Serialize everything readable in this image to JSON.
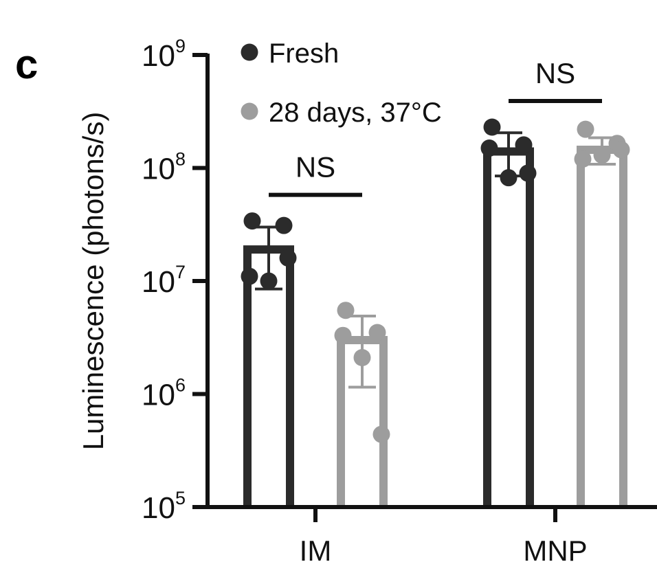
{
  "panel_label": "c",
  "chart_data": {
    "type": "bar",
    "scale": "log",
    "ylabel": "Luminescence (photons/s)",
    "xlabel": "",
    "ylim": [
      100000,
      1000000000
    ],
    "yticks": [
      {
        "value": 100000,
        "base": "10",
        "exp": "5"
      },
      {
        "value": 1000000,
        "base": "10",
        "exp": "6"
      },
      {
        "value": 10000000,
        "base": "10",
        "exp": "7"
      },
      {
        "value": 100000000,
        "base": "10",
        "exp": "8"
      },
      {
        "value": 1000000000,
        "base": "10",
        "exp": "9"
      }
    ],
    "categories": [
      "IM",
      "MNP"
    ],
    "legend": {
      "placement": "top-left"
    },
    "series": [
      {
        "name": "Fresh",
        "color": "#2b2b2b",
        "values": [
          19000000,
          140000000
        ],
        "error": [
          [
            8500000,
            30000000
          ],
          [
            85000000,
            205000000
          ]
        ],
        "points": [
          [
            34000000,
            31000000,
            11000000,
            10000000,
            16000000
          ],
          [
            230000000,
            160000000,
            150000000,
            82000000,
            90000000
          ]
        ]
      },
      {
        "name": "28 days, 37°C",
        "color": "#9d9d9d",
        "values": [
          3000000,
          145000000
        ],
        "error": [
          [
            1150000,
            4900000
          ],
          [
            108000000,
            185000000
          ]
        ],
        "points": [
          [
            5500000,
            3500000,
            3300000,
            2100000,
            440000
          ],
          [
            220000000,
            165000000,
            120000000,
            130000000,
            145000000
          ]
        ]
      }
    ],
    "significance": [
      {
        "category": "IM",
        "text": "NS"
      },
      {
        "category": "MNP",
        "text": "NS"
      }
    ]
  }
}
